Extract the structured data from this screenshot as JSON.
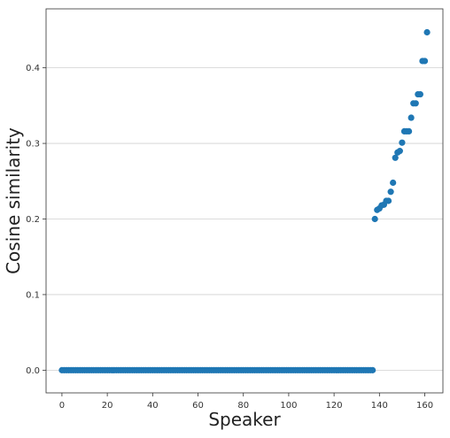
{
  "chart_data": {
    "type": "scatter",
    "title": "",
    "xlabel": "Speaker",
    "ylabel": "Cosine similarity",
    "xlim": [
      -7,
      168
    ],
    "ylim": [
      -0.03,
      0.478
    ],
    "xticks": [
      0,
      20,
      40,
      60,
      80,
      100,
      120,
      140,
      160
    ],
    "yticks": [
      0.0,
      0.1,
      0.2,
      0.3,
      0.4
    ],
    "ytick_labels": [
      "0.0",
      "0.1",
      "0.2",
      "0.3",
      "0.4"
    ],
    "grid": "horizontal",
    "legend": "none",
    "color": "#1f77b4",
    "zero_count": 138,
    "nonzero_points": [
      [
        138,
        0.2
      ],
      [
        139,
        0.212
      ],
      [
        140,
        0.214
      ],
      [
        141,
        0.218
      ],
      [
        142,
        0.219
      ],
      [
        143,
        0.224
      ],
      [
        144,
        0.224
      ],
      [
        145,
        0.236
      ],
      [
        146,
        0.248
      ],
      [
        147,
        0.281
      ],
      [
        148,
        0.288
      ],
      [
        149,
        0.29
      ],
      [
        150,
        0.301
      ],
      [
        151,
        0.316
      ],
      [
        152,
        0.316
      ],
      [
        153,
        0.316
      ],
      [
        154,
        0.334
      ],
      [
        155,
        0.353
      ],
      [
        156,
        0.353
      ],
      [
        157,
        0.365
      ],
      [
        158,
        0.365
      ],
      [
        159,
        0.409
      ],
      [
        160,
        0.409
      ],
      [
        161,
        0.447
      ]
    ]
  }
}
